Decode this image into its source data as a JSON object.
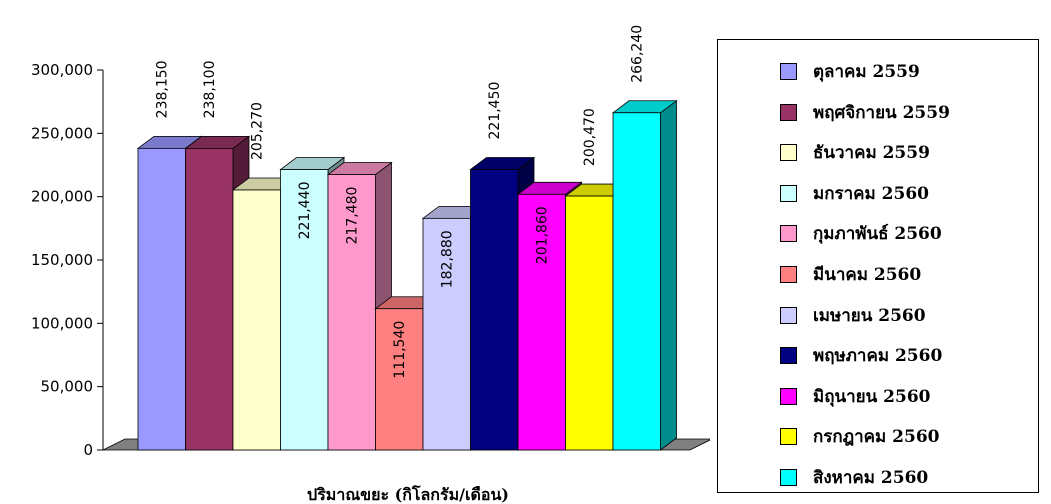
{
  "chart_data": {
    "type": "bar",
    "xlabel": "ปริมาณขยะ (กิโลกรัม/เดือน)",
    "ylim": [
      0,
      300000
    ],
    "yticks": [
      "0",
      "50,000",
      "100,000",
      "150,000",
      "200,000",
      "250,000",
      "300,000"
    ],
    "grid": false,
    "legend_position": "right",
    "series": [
      {
        "name": "ตุลาคม 2559",
        "value": 238150,
        "label": "238,150",
        "color": "#9999ff"
      },
      {
        "name": "พฤศจิกายน 2559",
        "value": 238100,
        "label": "238,100",
        "color": "#993366"
      },
      {
        "name": "ธันวาคม 2559",
        "value": 205270,
        "label": "205,270",
        "color": "#ffffcc"
      },
      {
        "name": "มกราคม 2560",
        "value": 221440,
        "label": "221,440",
        "color": "#ccffff"
      },
      {
        "name": "กุมภาพันธ์ 2560",
        "value": 217480,
        "label": "217,480",
        "color": "#ff99cc"
      },
      {
        "name": "มีนาคม 2560",
        "value": 111540,
        "label": "111,540",
        "color": "#ff8080"
      },
      {
        "name": "เมษายน 2560",
        "value": 182880,
        "label": "182,880",
        "color": "#ccccff"
      },
      {
        "name": "พฤษภาคม 2560",
        "value": 221450,
        "label": "221,450",
        "color": "#000080"
      },
      {
        "name": "มิถุนายน 2560",
        "value": 201860,
        "label": "201,860",
        "color": "#ff00ff"
      },
      {
        "name": "กรกฎาคม 2560",
        "value": 200470,
        "label": "200,470",
        "color": "#ffff00"
      },
      {
        "name": "สิงหาคม 2560",
        "value": 266240,
        "label": "266,240",
        "color": "#00ffff"
      }
    ]
  }
}
